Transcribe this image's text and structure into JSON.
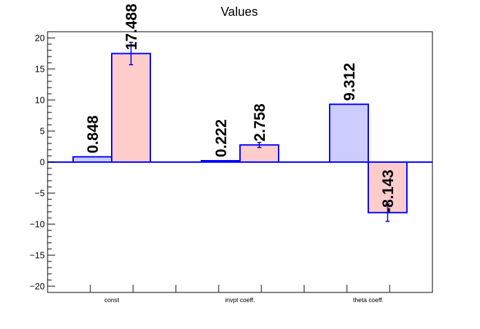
{
  "chart_data": {
    "type": "bar",
    "title": "Values",
    "xlabel": "",
    "ylabel": "",
    "categories": [
      "const",
      "invpt coeff.",
      "theta coeff."
    ],
    "series": [
      {
        "values": [
          0.848,
          0.222,
          9.312
        ],
        "labels": [
          "0.848",
          "0.222",
          "9.312"
        ],
        "color": "#ccccff",
        "errors": [
          0,
          0,
          0
        ]
      },
      {
        "values": [
          17.488,
          2.758,
          -8.143
        ],
        "labels": [
          "17.488",
          "2.758",
          "-8.143"
        ],
        "color": "#ffcccc",
        "errors": [
          1.8,
          0.4,
          1.4
        ]
      }
    ],
    "ylim": [
      -21,
      21
    ],
    "yticks": [
      -20,
      -15,
      -10,
      -5,
      0,
      5,
      10,
      15,
      20
    ],
    "grid": false,
    "legend": "none",
    "colors": {
      "outline": "#0000ff",
      "axis": "#000000",
      "errorbar": "#0000cc"
    }
  }
}
